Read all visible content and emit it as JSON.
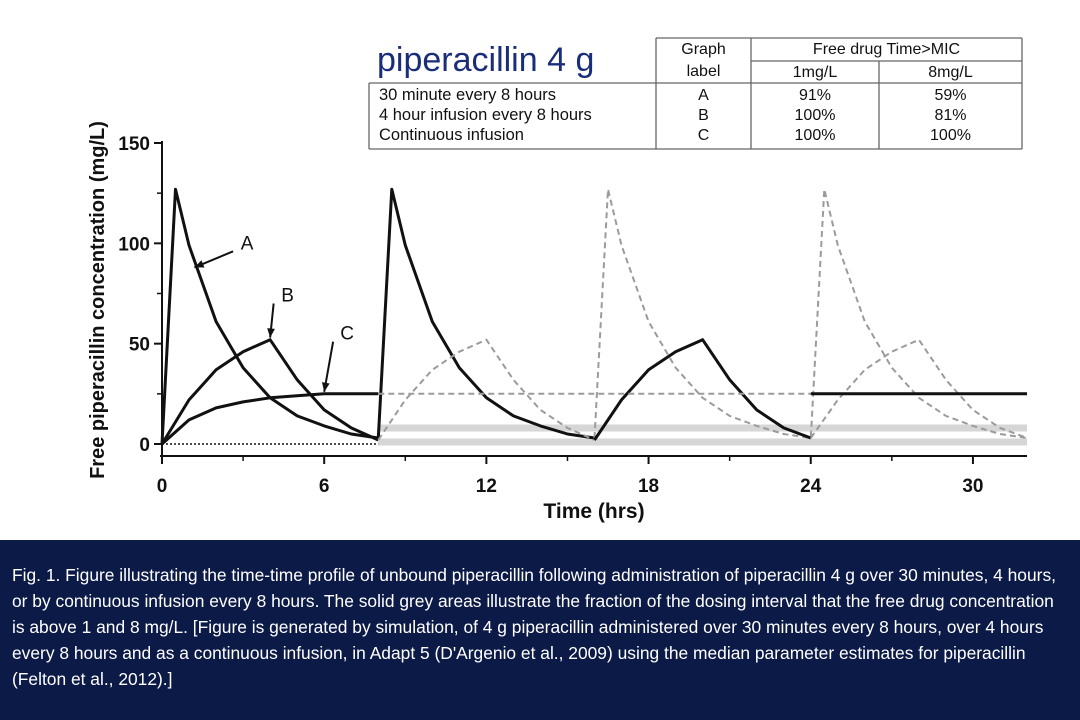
{
  "chart_data": {
    "type": "line",
    "title": "piperacillin 4 g",
    "xlabel": "Time (hrs)",
    "ylabel": "Free piperacillin concentration (mg/L)",
    "xlim": [
      0,
      32
    ],
    "ylim": [
      0,
      150
    ],
    "xticks": [
      0,
      6,
      12,
      18,
      24,
      30
    ],
    "yticks": [
      0,
      50,
      100,
      150
    ],
    "colors": {
      "solid": "#111111",
      "dashed": "#9b9b9b",
      "mic_band": "#d6d6d6"
    },
    "mic_lines_mg_per_L": [
      1,
      8
    ],
    "series": [
      {
        "name": "A",
        "label_point": {
          "x": 1.2,
          "y": 88
        },
        "x": [
          0,
          0.5,
          1,
          2,
          3,
          4,
          5,
          6,
          7,
          8,
          8.5,
          9,
          10,
          11,
          12,
          13,
          14,
          15,
          16,
          16.5,
          17,
          18,
          19,
          20,
          21,
          22,
          23,
          24,
          24.5,
          25,
          26,
          27,
          28,
          29,
          30,
          31,
          32
        ],
        "y": [
          0,
          127,
          99,
          61,
          38,
          23,
          14,
          9,
          5,
          3,
          127,
          99,
          61,
          38,
          23,
          14,
          9,
          5,
          3,
          127,
          99,
          61,
          38,
          23,
          14,
          9,
          5,
          3,
          127,
          99,
          61,
          38,
          23,
          14,
          9,
          5,
          3
        ]
      },
      {
        "name": "B",
        "label_point": {
          "x": 4.0,
          "y": 53
        },
        "x": [
          0,
          1,
          2,
          3,
          4,
          5,
          6,
          7,
          8,
          9,
          10,
          11,
          12,
          13,
          14,
          15,
          16,
          17,
          18,
          19,
          20,
          21,
          22,
          23,
          24,
          25,
          26,
          27,
          28,
          29,
          30,
          31,
          32
        ],
        "y": [
          0,
          22,
          37,
          46,
          52,
          32,
          17,
          8,
          2,
          22,
          37,
          46,
          52,
          32,
          17,
          8,
          2,
          22,
          37,
          46,
          52,
          32,
          17,
          8,
          3,
          22,
          37,
          46,
          52,
          32,
          17,
          8,
          3
        ]
      },
      {
        "name": "C",
        "label_point": {
          "x": 6.0,
          "y": 26
        },
        "x": [
          0,
          1,
          2,
          3,
          4,
          5,
          6,
          7,
          8,
          12,
          16,
          20,
          24,
          28,
          32
        ],
        "y": [
          0,
          12,
          18,
          21,
          23,
          24,
          25,
          25,
          25,
          25,
          25,
          25,
          25,
          25,
          25
        ]
      }
    ],
    "annotation_labels": [
      {
        "text": "A",
        "x": 3.0,
        "y": 99
      },
      {
        "text": "B",
        "x": 4.5,
        "y": 73
      },
      {
        "text": "C",
        "x": 6.7,
        "y": 54
      }
    ],
    "table": {
      "header_col1": "Graph label",
      "header_group": "Free drug Time>MIC",
      "subheaders": [
        "1mg/L",
        "8mg/L"
      ],
      "rows": [
        {
          "regimen": "30 minute every 8 hours",
          "label": "A",
          "mic1": "91%",
          "mic8": "59%"
        },
        {
          "regimen": "4 hour infusion every 8 hours",
          "label": "B",
          "mic1": "100%",
          "mic8": "81%"
        },
        {
          "regimen": "Continuous infusion",
          "label": "C",
          "mic1": "100%",
          "mic8": "100%"
        }
      ]
    }
  },
  "caption": "Fig. 1. Figure illustrating the time-time profile of unbound piperacillin following administration of piperacillin 4 g over 30 minutes, 4 hours, or by continuous infusion every 8 hours. The solid grey areas illustrate the fraction of the dosing interval that the free drug concentration is above 1 and 8 mg/L. [Figure is generated by simulation, of 4 g piperacillin administered over 30 minutes every 8 hours, over 4 hours every 8 hours and as a continuous infusion, in Adapt 5 (D'Argenio et al., 2009) using the median parameter estimates for piperacillin (Felton et al., 2012).]"
}
